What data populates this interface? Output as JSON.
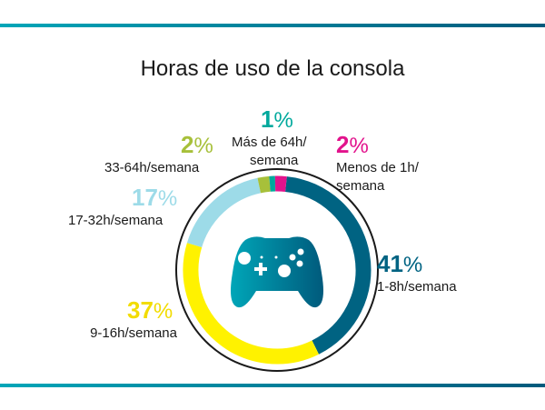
{
  "chart_data": {
    "type": "pie",
    "title": "Horas de uso de la consola",
    "slices": [
      {
        "label": "1-8h/semana",
        "value": 41,
        "color": "#006382"
      },
      {
        "label": "9-16h/semana",
        "value": 37,
        "color": "#fff200"
      },
      {
        "label": "17-32h/semana",
        "value": 17,
        "color": "#9ddbe8"
      },
      {
        "label": "33-64h/semana",
        "value": 2,
        "color": "#a7c03a"
      },
      {
        "label": "Más de 64h/semana",
        "value": 1,
        "color": "#00a99d"
      },
      {
        "label": "Menos de 1h/semana",
        "value": 2,
        "color": "#e2138c"
      }
    ]
  },
  "labels": [
    {
      "pct": "41",
      "unit": "%",
      "line1": "1-8h/semana",
      "line2": ""
    },
    {
      "pct": "37",
      "unit": "%",
      "line1": "9-16h/semana",
      "line2": ""
    },
    {
      "pct": "17",
      "unit": "%",
      "line1": "17-32h/semana",
      "line2": ""
    },
    {
      "pct": "2",
      "unit": "%",
      "line1": "33-64h/semana",
      "line2": ""
    },
    {
      "pct": "1",
      "unit": "%",
      "line1": "Más de 64h/",
      "line2": "semana"
    },
    {
      "pct": "2",
      "unit": "%",
      "line1": "Menos de 1h/",
      "line2": "semana"
    }
  ],
  "icon": "game-controller-icon"
}
